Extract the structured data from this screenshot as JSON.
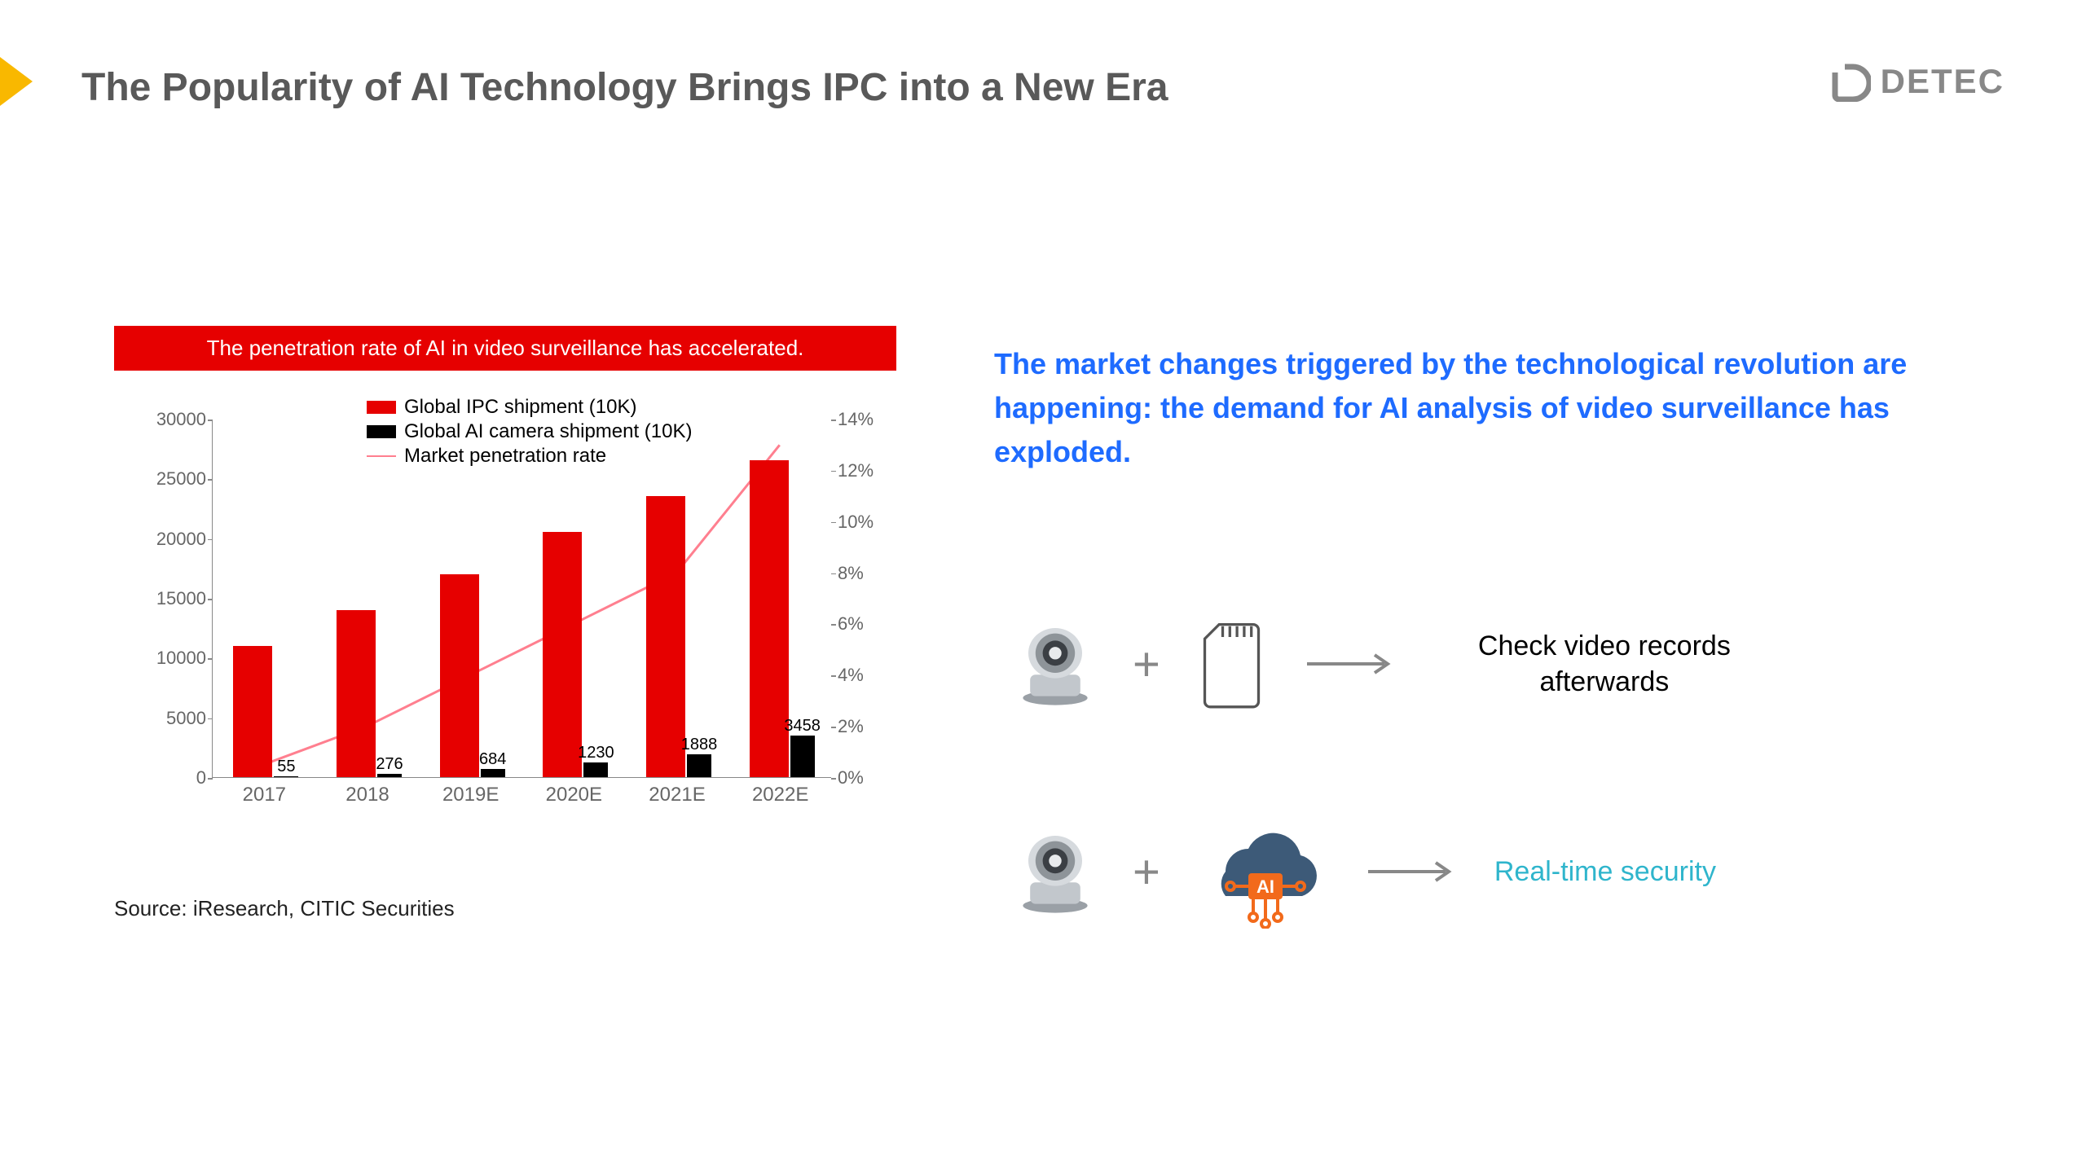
{
  "title": "The Popularity of AI Technology Brings IPC into a New Era",
  "logo_text": "DETEC",
  "chart": {
    "banner": "The penetration rate of AI in video surveillance has accelerated.",
    "legend": {
      "series1": "Global IPC shipment (10K)",
      "series2": "Global AI camera shipment (10K)",
      "series3": "Market penetration rate"
    },
    "categories": [
      "2017",
      "2018",
      "2019E",
      "2020E",
      "2021E",
      "2022E"
    ],
    "ipc_values": [
      11000,
      14000,
      17000,
      20500,
      23500,
      26500
    ],
    "ai_values": [
      55,
      276,
      684,
      1230,
      1888,
      3458
    ],
    "ai_labels": [
      "55",
      "276",
      "684",
      "1230",
      "1888",
      "3458"
    ],
    "penetration_percent": [
      0.5,
      2.0,
      4.0,
      6.0,
      8.0,
      13.0
    ],
    "left_axis": {
      "min": 0,
      "max": 30000,
      "ticks": [
        0,
        5000,
        10000,
        15000,
        20000,
        25000,
        30000
      ]
    },
    "right_axis": {
      "min": 0,
      "max": 14,
      "ticks": [
        0,
        2,
        4,
        6,
        8,
        10,
        12,
        14
      ],
      "labels": [
        "0%",
        "2%",
        "4%",
        "6%",
        "8%",
        "10%",
        "12%",
        "14%"
      ]
    },
    "colors": {
      "bar_red": "#e60000",
      "bar_black": "#000000",
      "line_pink": "#ff7f8f",
      "banner_bg": "#e60000",
      "banner_text": "#ffffff"
    },
    "source": "Source: iResearch, CITIC Securities"
  },
  "headline": "The market changes triggered by the technological revolution are happening: the demand for AI analysis of video surveillance has exploded.",
  "formula1_text": "Check video records afterwards",
  "formula2_text": "Real-time security",
  "colors": {
    "title": "#595959",
    "headline": "#1e6bff",
    "teal": "#2fb5cc",
    "yellow": "#f9b800",
    "logo": "#888888"
  }
}
